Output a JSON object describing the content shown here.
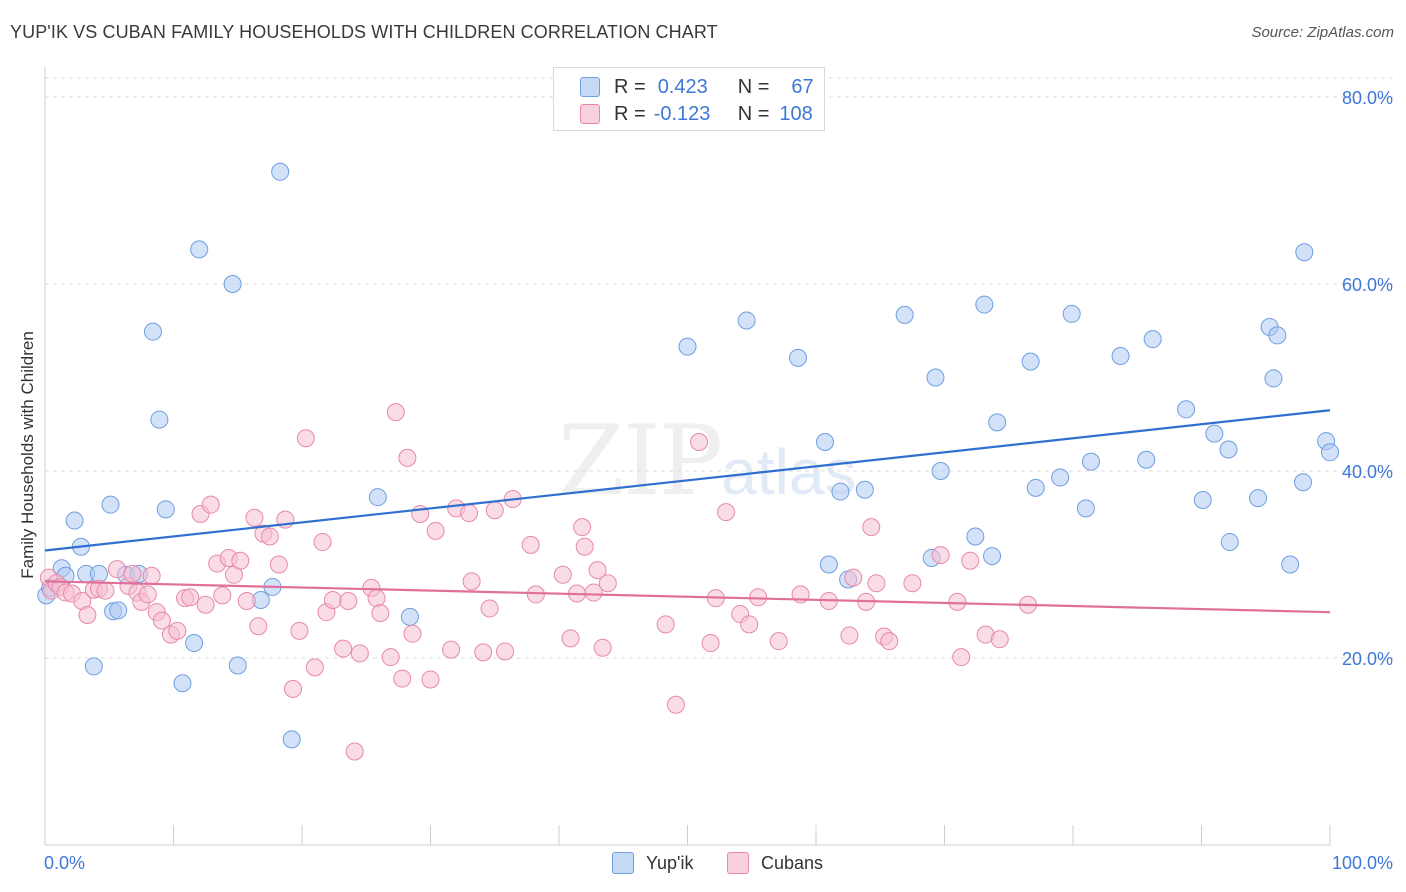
{
  "header": {
    "title": "YUP'IK VS CUBAN FAMILY HOUSEHOLDS WITH CHILDREN CORRELATION CHART",
    "source": "Source: ZipAtlas.com"
  },
  "watermark": {
    "zip": "ZIP",
    "atlas": "atlas"
  },
  "legend_top": {
    "rows": [
      {
        "r_label": "R =",
        "r_value": "0.423",
        "n_label": "N =",
        "n_value": "67"
      },
      {
        "r_label": "R =",
        "r_value": "-0.123",
        "n_label": "N =",
        "n_value": "108"
      }
    ]
  },
  "bottom_legend": {
    "series1": "Yup'ik",
    "series2": "Cubans"
  },
  "colors": {
    "series1_fill": "#aecbf2",
    "series1_stroke": "#6f9fe0",
    "series1_line": "#2f6fd0",
    "series2_fill": "#f6bfd1",
    "series2_stroke": "#e889aa",
    "series2_line": "#e0709a",
    "axis_label": "#3d78d8",
    "grid": "#dddddd"
  },
  "chart_data": {
    "type": "scatter",
    "title": "YUP'IK VS CUBAN FAMILY HOUSEHOLDS WITH CHILDREN CORRELATION CHART",
    "ylabel": "Family Households with Children",
    "xlabel": "",
    "xlim": [
      0,
      100
    ],
    "ylim": [
      0,
      80
    ],
    "x_tick_labels": [
      "0.0%",
      "100.0%"
    ],
    "y_ticks": [
      20,
      40,
      60,
      80
    ],
    "y_tick_labels": [
      "20.0%",
      "40.0%",
      "60.0%",
      "80.0%"
    ],
    "grid": true,
    "legend_position": "bottom",
    "series": [
      {
        "name": "Yup'ik",
        "r": 0.423,
        "n": 67,
        "trend": {
          "x": [
            0,
            100
          ],
          "y": [
            31.5,
            46.5
          ]
        },
        "points": [
          [
            0.1,
            26.7
          ],
          [
            0.4,
            27.5
          ],
          [
            1.3,
            29.6
          ],
          [
            1.6,
            28.8
          ],
          [
            2.3,
            34.7
          ],
          [
            2.8,
            31.9
          ],
          [
            3.2,
            29.0
          ],
          [
            3.8,
            19.1
          ],
          [
            4.2,
            29.0
          ],
          [
            5.1,
            36.4
          ],
          [
            5.3,
            25.0
          ],
          [
            5.7,
            25.1
          ],
          [
            6.3,
            28.9
          ],
          [
            7.3,
            29.0
          ],
          [
            8.4,
            54.9
          ],
          [
            8.9,
            45.5
          ],
          [
            9.4,
            35.9
          ],
          [
            10.7,
            17.3
          ],
          [
            11.6,
            21.6
          ],
          [
            12.0,
            63.7
          ],
          [
            14.6,
            60.0
          ],
          [
            15.0,
            19.2
          ],
          [
            16.8,
            26.2
          ],
          [
            17.7,
            27.6
          ],
          [
            18.3,
            72.0
          ],
          [
            19.2,
            11.3
          ],
          [
            25.9,
            37.2
          ],
          [
            28.4,
            24.4
          ],
          [
            50.0,
            53.3
          ],
          [
            54.6,
            56.1
          ],
          [
            58.6,
            52.1
          ],
          [
            60.7,
            43.1
          ],
          [
            61.0,
            30.0
          ],
          [
            61.9,
            37.8
          ],
          [
            62.5,
            28.4
          ],
          [
            63.8,
            38.0
          ],
          [
            66.9,
            56.7
          ],
          [
            69.0,
            30.7
          ],
          [
            69.3,
            50.0
          ],
          [
            69.7,
            40.0
          ],
          [
            72.4,
            33.0
          ],
          [
            73.1,
            57.8
          ],
          [
            73.7,
            30.9
          ],
          [
            74.1,
            45.2
          ],
          [
            76.7,
            51.7
          ],
          [
            77.1,
            38.2
          ],
          [
            79.0,
            39.3
          ],
          [
            79.9,
            56.8
          ],
          [
            81.0,
            36.0
          ],
          [
            81.4,
            41.0
          ],
          [
            83.7,
            52.3
          ],
          [
            85.7,
            41.2
          ],
          [
            86.2,
            54.1
          ],
          [
            88.8,
            46.6
          ],
          [
            90.1,
            36.9
          ],
          [
            91.0,
            44.0
          ],
          [
            92.1,
            42.3
          ],
          [
            92.2,
            32.4
          ],
          [
            94.4,
            37.1
          ],
          [
            95.3,
            55.4
          ],
          [
            95.6,
            49.9
          ],
          [
            95.9,
            54.5
          ],
          [
            96.9,
            30.0
          ],
          [
            97.9,
            38.8
          ],
          [
            98.0,
            63.4
          ],
          [
            99.7,
            43.2
          ],
          [
            100.0,
            42.0
          ]
        ]
      },
      {
        "name": "Cubans",
        "r": -0.123,
        "n": 108,
        "trend": {
          "x": [
            0,
            100
          ],
          "y": [
            28.2,
            24.9
          ]
        },
        "points": [
          [
            0.3,
            28.6
          ],
          [
            0.5,
            27.2
          ],
          [
            0.9,
            28.0
          ],
          [
            1.2,
            27.6
          ],
          [
            1.6,
            27.0
          ],
          [
            2.1,
            26.9
          ],
          [
            2.9,
            26.1
          ],
          [
            3.3,
            24.6
          ],
          [
            3.8,
            27.3
          ],
          [
            4.2,
            27.4
          ],
          [
            4.7,
            27.2
          ],
          [
            5.6,
            29.5
          ],
          [
            6.5,
            27.7
          ],
          [
            6.8,
            29.0
          ],
          [
            7.2,
            27.0
          ],
          [
            7.5,
            26.0
          ],
          [
            8.0,
            26.8
          ],
          [
            8.3,
            28.8
          ],
          [
            8.7,
            24.9
          ],
          [
            9.1,
            24.0
          ],
          [
            9.8,
            22.5
          ],
          [
            10.3,
            22.9
          ],
          [
            10.9,
            26.4
          ],
          [
            11.3,
            26.5
          ],
          [
            12.1,
            35.4
          ],
          [
            12.5,
            25.7
          ],
          [
            12.9,
            36.4
          ],
          [
            13.4,
            30.1
          ],
          [
            13.8,
            26.7
          ],
          [
            14.3,
            30.7
          ],
          [
            14.7,
            28.9
          ],
          [
            15.2,
            30.4
          ],
          [
            15.7,
            26.1
          ],
          [
            16.3,
            35.0
          ],
          [
            16.6,
            23.4
          ],
          [
            17.0,
            33.3
          ],
          [
            17.5,
            33.0
          ],
          [
            18.2,
            30.0
          ],
          [
            18.7,
            34.8
          ],
          [
            19.3,
            16.7
          ],
          [
            19.8,
            22.9
          ],
          [
            20.3,
            43.5
          ],
          [
            21.0,
            19.0
          ],
          [
            21.6,
            32.4
          ],
          [
            21.9,
            24.9
          ],
          [
            22.4,
            26.2
          ],
          [
            23.2,
            21.0
          ],
          [
            23.6,
            26.1
          ],
          [
            24.1,
            10.0
          ],
          [
            24.5,
            20.5
          ],
          [
            25.4,
            27.5
          ],
          [
            25.8,
            26.4
          ],
          [
            26.1,
            24.8
          ],
          [
            26.9,
            20.1
          ],
          [
            27.3,
            46.3
          ],
          [
            27.8,
            17.8
          ],
          [
            28.2,
            41.4
          ],
          [
            28.6,
            22.6
          ],
          [
            29.2,
            35.4
          ],
          [
            30.0,
            17.7
          ],
          [
            30.4,
            33.6
          ],
          [
            31.6,
            20.9
          ],
          [
            32.0,
            36.0
          ],
          [
            33.0,
            35.5
          ],
          [
            33.2,
            28.2
          ],
          [
            34.1,
            20.6
          ],
          [
            34.6,
            25.3
          ],
          [
            35.0,
            35.8
          ],
          [
            35.8,
            20.7
          ],
          [
            36.4,
            37.0
          ],
          [
            37.8,
            32.1
          ],
          [
            38.2,
            26.8
          ],
          [
            40.3,
            28.9
          ],
          [
            40.9,
            22.1
          ],
          [
            41.4,
            26.9
          ],
          [
            41.8,
            34.0
          ],
          [
            42.0,
            31.9
          ],
          [
            42.7,
            27.0
          ],
          [
            43.0,
            29.4
          ],
          [
            43.4,
            21.1
          ],
          [
            43.8,
            28.0
          ],
          [
            48.3,
            23.6
          ],
          [
            49.1,
            15.0
          ],
          [
            50.9,
            43.1
          ],
          [
            51.8,
            21.6
          ],
          [
            52.2,
            26.4
          ],
          [
            53.0,
            35.6
          ],
          [
            54.1,
            24.7
          ],
          [
            54.8,
            23.6
          ],
          [
            55.5,
            26.5
          ],
          [
            57.1,
            21.8
          ],
          [
            58.8,
            26.8
          ],
          [
            61.0,
            26.1
          ],
          [
            62.6,
            22.4
          ],
          [
            62.9,
            28.6
          ],
          [
            63.9,
            26.0
          ],
          [
            64.3,
            34.0
          ],
          [
            64.7,
            28.0
          ],
          [
            65.3,
            22.3
          ],
          [
            65.7,
            21.8
          ],
          [
            67.5,
            28.0
          ],
          [
            69.7,
            31.0
          ],
          [
            71.0,
            26.0
          ],
          [
            71.3,
            20.1
          ],
          [
            72.0,
            30.4
          ],
          [
            73.2,
            22.5
          ],
          [
            74.3,
            22.0
          ],
          [
            76.5,
            25.7
          ]
        ]
      }
    ]
  }
}
